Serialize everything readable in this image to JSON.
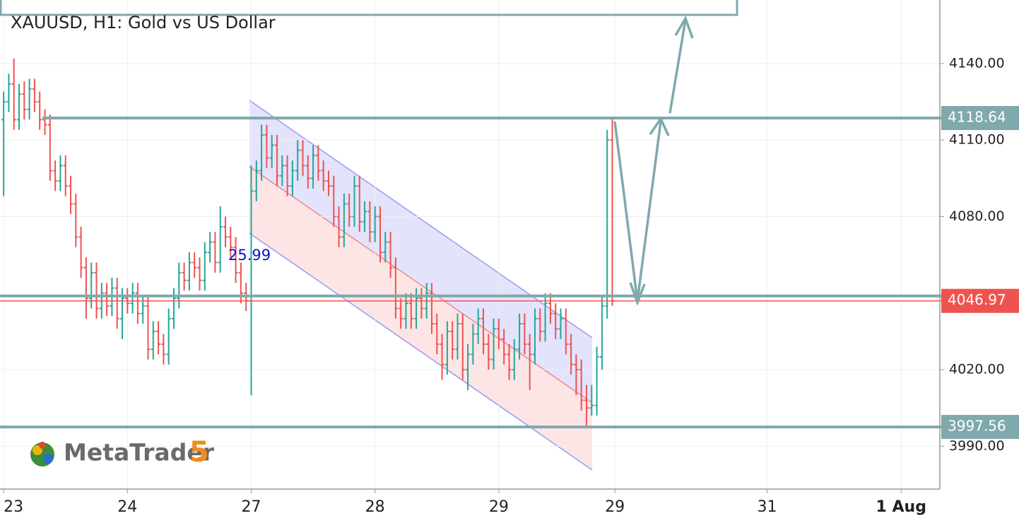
{
  "chart_data": {
    "type": "ohlc",
    "title": "XAUUSD, H1: Gold vs US Dollar",
    "watermark": "MetaTrader",
    "watermark_number": 5,
    "annotation": 25.99,
    "up_color": "#26a69a",
    "down_color": "#ef5350",
    "level_color": "#7fa9ad",
    "ylim": [
      3973.2,
      4164.9
    ],
    "xlim": [
      -0.7,
      181.5
    ],
    "yticks": [
      {
        "value": 3990,
        "label": "3990.00"
      },
      {
        "value": 4020,
        "label": "4020.00"
      },
      {
        "value": 4080,
        "label": "4080.00"
      },
      {
        "value": 4110,
        "label": "4110.00"
      },
      {
        "value": 4140,
        "label": "4140.00"
      }
    ],
    "xticks": [
      {
        "value": 0,
        "label": "23"
      },
      {
        "value": 24,
        "label": "24"
      },
      {
        "value": 48,
        "label": "27"
      },
      {
        "value": 72,
        "label": "28"
      },
      {
        "value": 96,
        "label": "29"
      },
      {
        "value": 118.5,
        "label": "29"
      },
      {
        "value": 148,
        "label": "31"
      },
      {
        "value": 174,
        "label": "1 Aug"
      }
    ],
    "grid": true,
    "levels": [
      4118.64,
      3997.56
    ],
    "current_price": 4046.97,
    "open": [
      4118,
      4125,
      4132,
      4118,
      4128,
      4122,
      4130,
      4125,
      4118,
      4116,
      4098,
      4094,
      4100,
      4092,
      4085,
      4072,
      4060,
      4048,
      4058,
      4044,
      4050,
      4045,
      4052,
      4040,
      4048,
      4046,
      4050,
      4042,
      4045,
      4028,
      4035,
      4030,
      4026,
      4040,
      4048,
      4058,
      4055,
      4062,
      4060,
      4055,
      4066,
      4070,
      4062,
      4076,
      4072,
      4068,
      4058,
      4050,
      4047,
      4090,
      4098,
      4112,
      4103,
      4108,
      4096,
      4100,
      4092,
      4098,
      4106,
      4100,
      4095,
      4104,
      4098,
      4094,
      4092,
      4080,
      4072,
      4085,
      4080,
      4092,
      4078,
      4082,
      4074,
      4080,
      4066,
      4070,
      4060,
      4044,
      4040,
      4046,
      4040,
      4048,
      4044,
      4050,
      4038,
      4030,
      4022,
      4035,
      4028,
      4038,
      4020,
      4026,
      4034,
      4040,
      4030,
      4024,
      4036,
      4032,
      4026,
      4020,
      4028,
      4038,
      4030,
      4026,
      4040,
      4035,
      4046,
      4042,
      4036,
      4040,
      4030,
      4022,
      4020,
      4008,
      4005,
      4006,
      4025,
      4045,
      4110
    ],
    "high": [
      4129,
      4136,
      4142,
      4132,
      4133,
      4134,
      4134,
      4129,
      4122,
      4120,
      4102,
      4104,
      4104,
      4096,
      4089,
      4076,
      4064,
      4062,
      4062,
      4054,
      4054,
      4056,
      4056,
      4052,
      4052,
      4054,
      4054,
      4049,
      4049,
      4039,
      4039,
      4034,
      4044,
      4052,
      4062,
      4062,
      4066,
      4066,
      4064,
      4070,
      4074,
      4074,
      4084,
      4080,
      4076,
      4072,
      4062,
      4054,
      4100,
      4102,
      4116,
      4116,
      4112,
      4112,
      4104,
      4104,
      4102,
      4110,
      4110,
      4104,
      4108,
      4108,
      4102,
      4098,
      4096,
      4084,
      4089,
      4089,
      4096,
      4096,
      4086,
      4086,
      4084,
      4084,
      4074,
      4074,
      4064,
      4048,
      4050,
      4050,
      4052,
      4052,
      4054,
      4054,
      4042,
      4034,
      4039,
      4039,
      4042,
      4042,
      4030,
      4038,
      4044,
      4044,
      4034,
      4040,
      4040,
      4036,
      4030,
      4032,
      4042,
      4042,
      4034,
      4044,
      4044,
      4050,
      4050,
      4046,
      4044,
      4044,
      4034,
      4026,
      4024,
      4014,
      4014,
      4029,
      4049,
      4114,
      4118.64
    ],
    "low": [
      4088,
      4121,
      4114,
      4114,
      4118,
      4118,
      4121,
      4114,
      4112,
      4094,
      4090,
      4090,
      4088,
      4081,
      4068,
      4056,
      4040,
      4044,
      4040,
      4040,
      4041,
      4041,
      4036,
      4032,
      4042,
      4042,
      4038,
      4038,
      4024,
      4024,
      4026,
      4022,
      4022,
      4036,
      4044,
      4051,
      4051,
      4056,
      4051,
      4051,
      4062,
      4058,
      4058,
      4068,
      4064,
      4054,
      4046,
      4043,
      4010,
      4086,
      4094,
      4099,
      4099,
      4092,
      4092,
      4088,
      4088,
      4094,
      4096,
      4091,
      4091,
      4094,
      4090,
      4088,
      4076,
      4068,
      4068,
      4076,
      4076,
      4074,
      4074,
      4070,
      4070,
      4062,
      4062,
      4056,
      4040,
      4036,
      4036,
      4036,
      4036,
      4040,
      4040,
      4034,
      4026,
      4016,
      4018,
      4024,
      4024,
      4016,
      4012,
      4022,
      4030,
      4026,
      4020,
      4020,
      4028,
      4022,
      4016,
      4016,
      4024,
      4026,
      4012,
      4022,
      4031,
      4031,
      4038,
      4032,
      4032,
      4026,
      4018,
      4010,
      4004,
      3998,
      4002,
      4002,
      4020,
      4040,
      4045
    ],
    "close": [
      4125,
      4132,
      4118,
      4128,
      4122,
      4130,
      4125,
      4118,
      4116,
      4098,
      4094,
      4100,
      4092,
      4085,
      4072,
      4060,
      4048,
      4058,
      4044,
      4050,
      4045,
      4052,
      4040,
      4048,
      4046,
      4050,
      4042,
      4045,
      4028,
      4035,
      4030,
      4026,
      4040,
      4048,
      4058,
      4055,
      4062,
      4060,
      4055,
      4066,
      4070,
      4062,
      4076,
      4072,
      4068,
      4058,
      4050,
      4047,
      4090,
      4098,
      4112,
      4103,
      4108,
      4096,
      4100,
      4092,
      4098,
      4106,
      4100,
      4095,
      4104,
      4098,
      4094,
      4092,
      4080,
      4072,
      4085,
      4080,
      4092,
      4078,
      4082,
      4074,
      4080,
      4066,
      4070,
      4060,
      4044,
      4040,
      4046,
      4040,
      4048,
      4044,
      4050,
      4038,
      4030,
      4022,
      4035,
      4028,
      4038,
      4020,
      4026,
      4034,
      4040,
      4030,
      4024,
      4036,
      4032,
      4026,
      4020,
      4028,
      4038,
      4030,
      4026,
      4040,
      4035,
      4046,
      4042,
      4036,
      4040,
      4030,
      4022,
      4020,
      4008,
      4005,
      4006,
      4025,
      4045,
      4110,
      4046.97
    ]
  }
}
